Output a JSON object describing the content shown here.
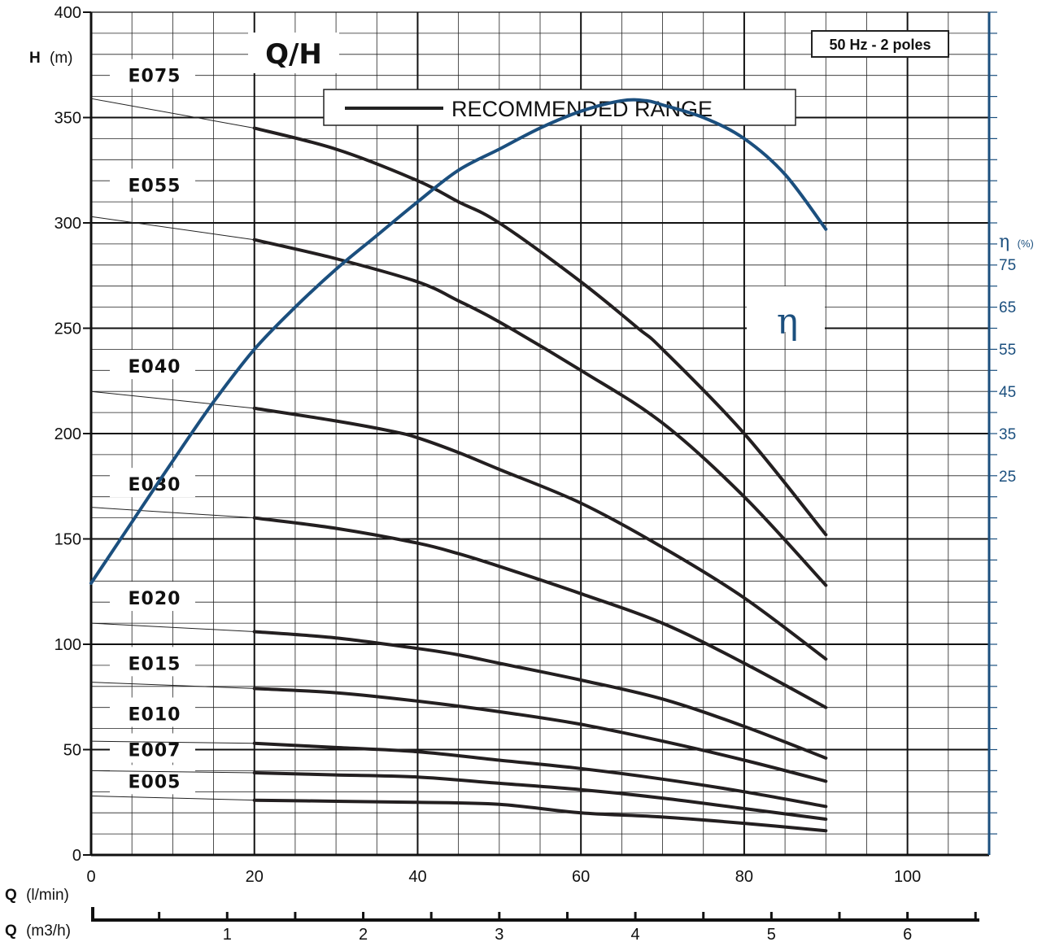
{
  "chart_data": {
    "type": "line",
    "title": "Q/H",
    "frequency_badge": "50 Hz - 2 poles",
    "legend_text": "RECOMMENDED  RANGE",
    "y_axis": {
      "symbol": "H",
      "unit": "(m)",
      "ylim": [
        0,
        400
      ],
      "ticks": [
        "0",
        "50",
        "100",
        "150",
        "200",
        "250",
        "300",
        "350",
        "400"
      ]
    },
    "x_axis": {
      "symbol": "Q",
      "unit": "(l/min)",
      "xlim": [
        0,
        110
      ],
      "ticks": [
        "0",
        "20",
        "40",
        "60",
        "80",
        "100"
      ]
    },
    "x_axis_secondary": {
      "symbol": "Q",
      "unit": "(m3/h)",
      "ticks": [
        "1",
        "2",
        "3",
        "4",
        "5",
        "6"
      ]
    },
    "eta_axis": {
      "symbol": "η",
      "unit": "(%)",
      "ticks": [
        "75",
        "65",
        "55",
        "45",
        "35",
        "25"
      ],
      "colour": "#1b4f7e"
    },
    "eta_curve_label": "η",
    "series": [
      {
        "name": "E075",
        "x": [
          20,
          30,
          40,
          45,
          50,
          60,
          67,
          70,
          80,
          90
        ],
        "y": [
          345,
          335,
          320,
          310,
          300,
          272,
          250,
          240,
          200,
          152
        ],
        "unrecommended": [
          [
            0,
            359
          ],
          [
            20,
            345
          ]
        ]
      },
      {
        "name": "E055",
        "x": [
          20,
          30,
          40,
          45,
          50,
          60,
          70,
          80,
          90
        ],
        "y": [
          292,
          283,
          272,
          263,
          253,
          230,
          205,
          170,
          128
        ],
        "unrecommended": [
          [
            0,
            303
          ],
          [
            20,
            292
          ]
        ]
      },
      {
        "name": "E040",
        "x": [
          20,
          30,
          37,
          40,
          45,
          50,
          60,
          70,
          80,
          90
        ],
        "y": [
          212,
          206,
          201,
          198,
          191,
          183,
          167,
          146,
          122,
          93
        ],
        "unrecommended": [
          [
            0,
            220
          ],
          [
            20,
            212
          ]
        ]
      },
      {
        "name": "E030",
        "x": [
          20,
          30,
          40,
          45,
          50,
          60,
          70,
          80,
          90
        ],
        "y": [
          160,
          155,
          148,
          143,
          137,
          124,
          110,
          91,
          70
        ],
        "unrecommended": [
          [
            0,
            165
          ],
          [
            20,
            160
          ]
        ]
      },
      {
        "name": "E020",
        "x": [
          20,
          30,
          40,
          45,
          50,
          60,
          70,
          80,
          90
        ],
        "y": [
          106,
          103,
          98,
          95,
          91,
          83,
          74,
          61,
          46
        ],
        "unrecommended": [
          [
            0,
            110
          ],
          [
            20,
            106
          ]
        ]
      },
      {
        "name": "E015",
        "x": [
          20,
          30,
          40,
          50,
          60,
          70,
          80,
          90
        ],
        "y": [
          79,
          77,
          73,
          68,
          62,
          54,
          45,
          35
        ],
        "unrecommended": [
          [
            0,
            82
          ],
          [
            20,
            79
          ]
        ]
      },
      {
        "name": "E010",
        "x": [
          20,
          30,
          40,
          50,
          60,
          70,
          80,
          90
        ],
        "y": [
          53,
          51,
          49,
          45,
          41,
          36,
          30,
          23
        ],
        "unrecommended": [
          [
            0,
            54
          ],
          [
            20,
            53
          ]
        ]
      },
      {
        "name": "E007",
        "x": [
          20,
          30,
          40,
          50,
          60,
          70,
          80,
          90
        ],
        "y": [
          39,
          38,
          37,
          34,
          31,
          27,
          22,
          17
        ],
        "unrecommended": [
          [
            0,
            40
          ],
          [
            20,
            39
          ]
        ]
      },
      {
        "name": "E005",
        "x": [
          20,
          30,
          40,
          50,
          60,
          70,
          80,
          90
        ],
        "y": [
          26,
          25.5,
          25,
          24,
          20,
          18,
          15,
          11.5
        ],
        "unrecommended": [
          [
            0,
            28
          ],
          [
            20,
            26
          ]
        ]
      }
    ],
    "eta_series": {
      "x": [
        0,
        5,
        10,
        15,
        20,
        25,
        30,
        35,
        40,
        45,
        50,
        55,
        60,
        65,
        68,
        70,
        75,
        80,
        85,
        90
      ],
      "y": [
        129,
        158,
        187,
        215,
        240,
        260,
        278,
        294,
        310,
        325,
        335,
        345,
        353,
        358,
        358,
        356,
        350,
        340,
        323,
        297
      ],
      "note_y_units": "drawn against H axis scale"
    },
    "label_heights": {
      "E075": 370,
      "E055": 318,
      "E040": 232,
      "E030": 176,
      "E020": 122,
      "E015": 91,
      "E010": 67,
      "E007": 50,
      "E005": 35
    },
    "grid": true,
    "legend_position": "top-center"
  }
}
